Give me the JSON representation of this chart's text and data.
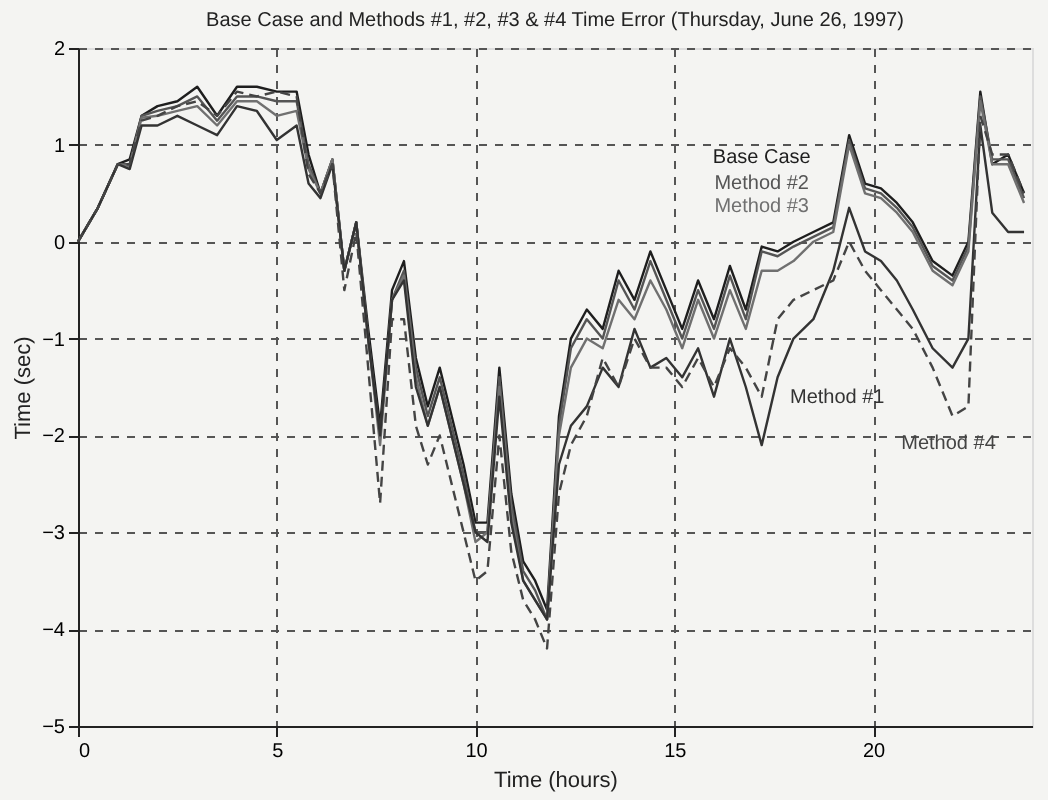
{
  "chart_data": {
    "type": "line",
    "title": "Base Case and Methods #1, #2, #3 & #4 Time Error (Thursday, June 26, 1997)",
    "xlabel": "Time (hours)",
    "ylabel": "Time (sec)",
    "x": [
      0,
      0.5,
      1,
      1.3,
      1.6,
      2,
      2.5,
      3,
      3.5,
      4,
      4.5,
      5,
      5.5,
      5.8,
      6.1,
      6.4,
      6.7,
      7,
      7.3,
      7.6,
      7.9,
      8.2,
      8.5,
      8.8,
      9.1,
      9.4,
      9.7,
      10,
      10.3,
      10.6,
      10.9,
      11.2,
      11.5,
      11.8,
      12.1,
      12.4,
      12.8,
      13.2,
      13.6,
      14,
      14.4,
      14.8,
      15.2,
      15.6,
      16,
      16.4,
      16.8,
      17.2,
      17.6,
      18,
      18.5,
      19,
      19.4,
      19.8,
      20.2,
      20.6,
      21,
      21.5,
      22,
      22.4,
      22.7,
      23,
      23.4,
      23.8
    ],
    "series": [
      {
        "name": "Base Case",
        "color": "#1e1e1e",
        "line_style": "solid",
        "values": [
          0,
          0.35,
          0.8,
          0.85,
          1.3,
          1.4,
          1.45,
          1.6,
          1.3,
          1.6,
          1.6,
          1.55,
          1.55,
          0.9,
          0.5,
          0.85,
          -0.3,
          0.2,
          -0.9,
          -1.9,
          -0.5,
          -0.2,
          -1.2,
          -1.7,
          -1.3,
          -1.8,
          -2.3,
          -2.9,
          -2.9,
          -1.3,
          -2.6,
          -3.3,
          -3.5,
          -3.8,
          -1.8,
          -1.0,
          -0.7,
          -0.9,
          -0.3,
          -0.6,
          -0.1,
          -0.5,
          -0.9,
          -0.4,
          -0.8,
          -0.25,
          -0.7,
          -0.05,
          -0.1,
          0.0,
          0.1,
          0.2,
          1.1,
          0.6,
          0.55,
          0.4,
          0.2,
          -0.2,
          -0.35,
          0.0,
          1.55,
          0.8,
          0.9,
          0.5
        ]
      },
      {
        "name": "Method #2",
        "color": "#555555",
        "line_style": "solid",
        "values": [
          0,
          0.35,
          0.8,
          0.8,
          1.3,
          1.35,
          1.4,
          1.5,
          1.25,
          1.5,
          1.5,
          1.45,
          1.45,
          0.8,
          0.5,
          0.85,
          -0.3,
          0.2,
          -1.0,
          -2.0,
          -0.6,
          -0.3,
          -1.3,
          -1.8,
          -1.4,
          -1.9,
          -2.4,
          -3.0,
          -3.0,
          -1.4,
          -2.7,
          -3.4,
          -3.6,
          -3.9,
          -1.9,
          -1.1,
          -0.8,
          -1.0,
          -0.4,
          -0.7,
          -0.2,
          -0.6,
          -1.0,
          -0.5,
          -0.9,
          -0.35,
          -0.8,
          -0.1,
          -0.15,
          -0.05,
          0.05,
          0.15,
          1.05,
          0.55,
          0.5,
          0.35,
          0.15,
          -0.25,
          -0.4,
          -0.05,
          1.5,
          0.85,
          0.85,
          0.45
        ]
      },
      {
        "name": "Method #3",
        "color": "#707070",
        "line_style": "solid",
        "values": [
          0,
          0.35,
          0.8,
          0.78,
          1.28,
          1.3,
          1.35,
          1.4,
          1.2,
          1.45,
          1.45,
          1.3,
          1.35,
          0.75,
          0.5,
          0.85,
          -0.3,
          0.2,
          -1.0,
          -2.1,
          -0.6,
          -0.35,
          -1.4,
          -1.9,
          -1.5,
          -2.0,
          -2.5,
          -3.1,
          -3.0,
          -1.5,
          -2.8,
          -3.5,
          -3.7,
          -3.9,
          -2.0,
          -1.3,
          -1.0,
          -1.1,
          -0.6,
          -0.8,
          -0.4,
          -0.7,
          -1.1,
          -0.6,
          -1.0,
          -0.5,
          -0.9,
          -0.3,
          -0.3,
          -0.2,
          0.0,
          0.1,
          1.0,
          0.5,
          0.45,
          0.3,
          0.1,
          -0.3,
          -0.45,
          -0.1,
          1.45,
          0.8,
          0.8,
          0.4
        ]
      },
      {
        "name": "Method #1",
        "color": "#333333",
        "line_style": "solid",
        "values": [
          0,
          0.35,
          0.8,
          0.75,
          1.2,
          1.2,
          1.3,
          1.2,
          1.1,
          1.4,
          1.35,
          1.05,
          1.2,
          0.6,
          0.45,
          0.8,
          -0.3,
          0.2,
          -1.0,
          -2.0,
          -0.6,
          -0.4,
          -1.5,
          -1.9,
          -1.5,
          -2.0,
          -2.5,
          -3.0,
          -3.1,
          -1.6,
          -2.9,
          -3.5,
          -3.7,
          -3.9,
          -2.3,
          -1.9,
          -1.7,
          -1.3,
          -1.5,
          -0.9,
          -1.3,
          -1.2,
          -1.4,
          -1.1,
          -1.6,
          -1.0,
          -1.5,
          -2.1,
          -1.4,
          -1.0,
          -0.8,
          -0.3,
          0.35,
          -0.1,
          -0.2,
          -0.4,
          -0.7,
          -1.1,
          -1.3,
          -1.0,
          1.2,
          0.3,
          0.1,
          0.1
        ]
      },
      {
        "name": "Method #4",
        "color": "#444444",
        "line_style": "dashed",
        "values": [
          0,
          0.35,
          0.8,
          0.8,
          1.25,
          1.3,
          1.4,
          1.45,
          1.3,
          1.55,
          1.5,
          1.55,
          1.5,
          0.7,
          0.5,
          0.8,
          -0.5,
          0.1,
          -1.3,
          -2.7,
          -0.8,
          -0.8,
          -1.9,
          -2.3,
          -2.0,
          -2.5,
          -3.0,
          -3.5,
          -3.4,
          -2.0,
          -3.2,
          -3.7,
          -3.9,
          -4.2,
          -2.6,
          -2.1,
          -1.8,
          -1.2,
          -1.5,
          -1.0,
          -1.3,
          -1.3,
          -1.5,
          -1.2,
          -1.5,
          -1.1,
          -1.3,
          -1.6,
          -0.8,
          -0.6,
          -0.5,
          -0.4,
          0.0,
          -0.3,
          -0.5,
          -0.7,
          -0.9,
          -1.3,
          -1.8,
          -1.7,
          1.3,
          0.9,
          0.9,
          0.5
        ]
      }
    ],
    "xlim": [
      0,
      24
    ],
    "xticks": [
      0,
      5,
      10,
      15,
      20
    ],
    "ylim": [
      -5,
      2
    ],
    "yticks": [
      -5,
      -4,
      -3,
      -2,
      -1,
      0,
      1,
      2
    ],
    "grid": true,
    "marker": "none"
  }
}
